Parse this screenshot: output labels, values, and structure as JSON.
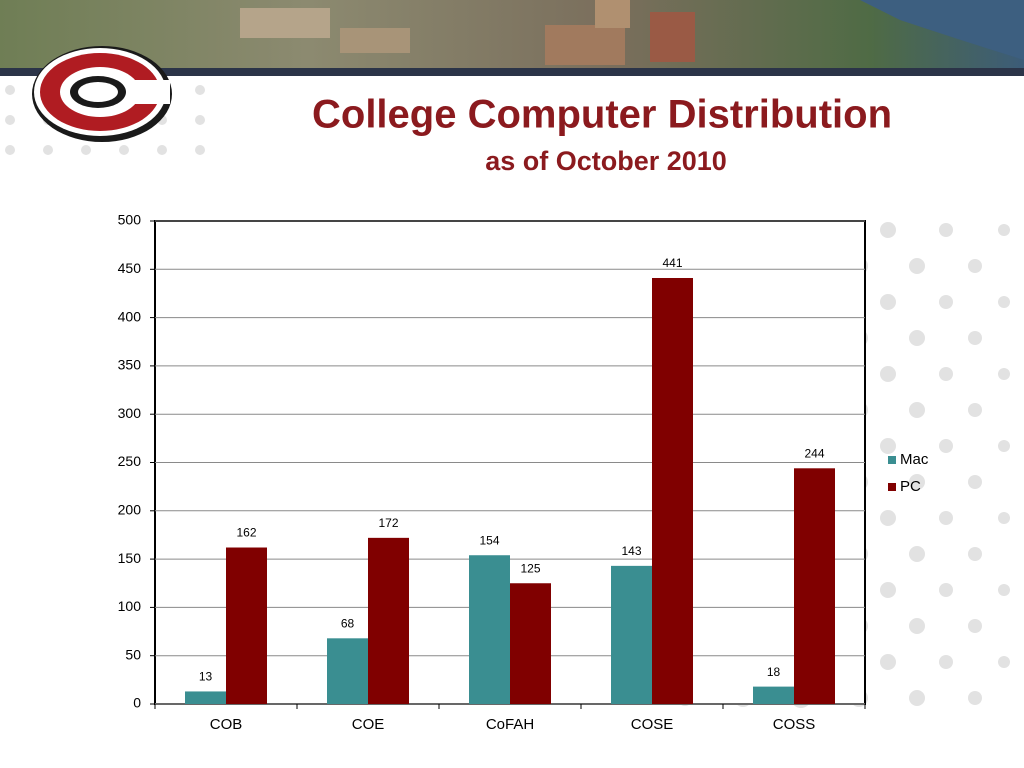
{
  "chart_data": {
    "type": "bar",
    "title": "College Computer Distribution",
    "subtitle": "as of October 2010",
    "categories": [
      "COB",
      "COE",
      "CoFAH",
      "COSE",
      "COSS"
    ],
    "series": [
      {
        "name": "Mac",
        "color": "#3a8e91",
        "values": [
          13,
          68,
          154,
          143,
          18
        ]
      },
      {
        "name": "PC",
        "color": "#800000",
        "values": [
          162,
          172,
          125,
          441,
          244
        ]
      }
    ],
    "ylim": [
      0,
      500
    ],
    "yticks": [
      0,
      50,
      100,
      150,
      200,
      250,
      300,
      350,
      400,
      450,
      500
    ],
    "grid": true,
    "legend": "right"
  }
}
